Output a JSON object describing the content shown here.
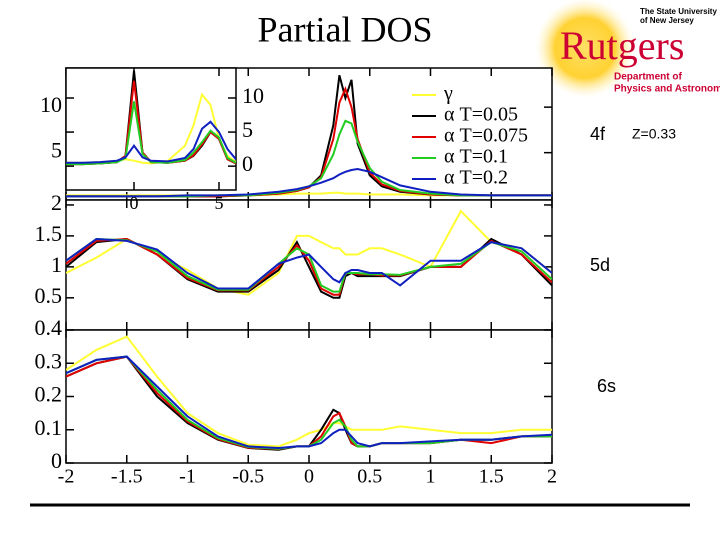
{
  "slide": {
    "title": "Partial DOS",
    "logo": {
      "name": "Rutgers",
      "university": [
        "The State University",
        "of New Jersey"
      ],
      "department": [
        "Department of",
        "Physics and Astronomy"
      ]
    }
  },
  "chart_data": [
    {
      "type": "line",
      "label": "4f",
      "note": "Z=0.33",
      "legend": "upper right",
      "x": [
        -2,
        -1.75,
        -1.5,
        -1.25,
        -1,
        -0.75,
        -0.5,
        -0.25,
        -0.1,
        0,
        0.1,
        0.2,
        0.25,
        0.3,
        0.35,
        0.4,
        0.5,
        0.6,
        0.75,
        1,
        1.25,
        1.5,
        1.75,
        2
      ],
      "xlim": [
        -2,
        2
      ],
      "xticks": [
        -2,
        -1.5,
        -1,
        -0.5,
        0,
        0.5,
        1,
        1.5,
        2
      ],
      "ylim": [
        -0.2,
        14.3
      ],
      "yticks": [
        5,
        10
      ],
      "series": [
        {
          "name": "γ",
          "color": "#ffff33",
          "values": [
            0.3,
            0.3,
            0.3,
            0.3,
            0.3,
            0.3,
            0.3,
            0.4,
            0.5,
            0.5,
            0.5,
            0.6,
            0.6,
            0.5,
            0.5,
            0.5,
            0.4,
            0.4,
            0.4,
            0.3,
            0.3,
            0.3,
            0.3,
            0.3
          ]
        },
        {
          "name": "α T=0.05",
          "color": "#000000",
          "values": [
            0.2,
            0.2,
            0.2,
            0.2,
            0.2,
            0.2,
            0.3,
            0.5,
            0.8,
            1.2,
            2.5,
            8,
            13.5,
            11,
            13,
            6,
            2.5,
            1.3,
            0.7,
            0.4,
            0.3,
            0.3,
            0.3,
            0.3
          ]
        },
        {
          "name": "α T=0.075",
          "color": "#e00000",
          "values": [
            0.2,
            0.2,
            0.2,
            0.2,
            0.2,
            0.2,
            0.3,
            0.5,
            0.8,
            1.2,
            2.3,
            6.5,
            10.5,
            12,
            10,
            6.5,
            2.8,
            1.5,
            0.8,
            0.4,
            0.3,
            0.3,
            0.3,
            0.3
          ]
        },
        {
          "name": "α T=0.1",
          "color": "#22cc22",
          "values": [
            0.2,
            0.2,
            0.2,
            0.2,
            0.2,
            0.3,
            0.3,
            0.6,
            0.9,
            1.3,
            2.2,
            4.8,
            7,
            8.5,
            8.2,
            6.2,
            3.3,
            1.8,
            0.9,
            0.5,
            0.3,
            0.3,
            0.3,
            0.3
          ]
        },
        {
          "name": "α T=0.2",
          "color": "#1020c0",
          "values": [
            0.2,
            0.2,
            0.2,
            0.2,
            0.3,
            0.3,
            0.4,
            0.7,
            1,
            1.3,
            1.7,
            2.2,
            2.6,
            2.9,
            3.1,
            3.2,
            2.9,
            2.3,
            1.4,
            0.7,
            0.4,
            0.3,
            0.3,
            0.3
          ]
        }
      ]
    },
    {
      "type": "line",
      "label": "5d",
      "x": [
        -2,
        -1.75,
        -1.5,
        -1.25,
        -1,
        -0.75,
        -0.5,
        -0.25,
        -0.1,
        0,
        0.1,
        0.2,
        0.25,
        0.3,
        0.35,
        0.4,
        0.5,
        0.6,
        0.75,
        1,
        1.25,
        1.5,
        1.75,
        2
      ],
      "xlim": [
        -2,
        2
      ],
      "xticks": [
        -2,
        -1.5,
        -1,
        -0.5,
        0,
        0.5,
        1,
        1.5,
        2
      ],
      "ylim": [
        -0.02,
        2.08
      ],
      "yticks": [
        0.5,
        1,
        1.5,
        2
      ],
      "series": [
        {
          "color": "#ffff33",
          "values": [
            0.9,
            1.15,
            1.45,
            1.2,
            0.95,
            0.65,
            0.55,
            0.9,
            1.5,
            1.5,
            1.4,
            1.3,
            1.3,
            1.2,
            1.2,
            1.2,
            1.3,
            1.3,
            1.2,
            1.0,
            1.9,
            1.4,
            1.3,
            0.9
          ]
        },
        {
          "color": "#000000",
          "values": [
            1.0,
            1.4,
            1.45,
            1.2,
            0.8,
            0.6,
            0.6,
            0.95,
            1.4,
            1.0,
            0.6,
            0.5,
            0.5,
            0.85,
            0.9,
            0.85,
            0.85,
            0.85,
            0.85,
            1.0,
            1.0,
            1.45,
            1.2,
            0.7
          ]
        },
        {
          "color": "#e00000",
          "values": [
            1.05,
            1.42,
            1.45,
            1.2,
            0.82,
            0.62,
            0.62,
            1.0,
            1.35,
            1.1,
            0.65,
            0.55,
            0.55,
            0.9,
            0.9,
            0.88,
            0.88,
            0.86,
            0.86,
            1.0,
            1.0,
            1.42,
            1.2,
            0.75
          ]
        },
        {
          "color": "#22cc22",
          "values": [
            1.1,
            1.45,
            1.43,
            1.25,
            0.85,
            0.63,
            0.63,
            1.05,
            1.3,
            1.2,
            0.7,
            0.6,
            0.6,
            0.9,
            0.9,
            0.9,
            0.88,
            0.88,
            0.87,
            1.0,
            1.05,
            1.4,
            1.25,
            0.8
          ]
        },
        {
          "color": "#1020c0",
          "values": [
            1.1,
            1.45,
            1.42,
            1.28,
            0.9,
            0.65,
            0.65,
            1.05,
            1.15,
            1.2,
            1.0,
            0.8,
            0.75,
            0.9,
            0.95,
            0.95,
            0.9,
            0.9,
            0.7,
            1.1,
            1.1,
            1.4,
            1.3,
            0.9
          ]
        }
      ]
    },
    {
      "type": "line",
      "label": "6s",
      "x": [
        -2,
        -1.75,
        -1.5,
        -1.25,
        -1,
        -0.75,
        -0.5,
        -0.25,
        -0.1,
        0,
        0.1,
        0.2,
        0.25,
        0.3,
        0.35,
        0.4,
        0.5,
        0.6,
        0.75,
        1,
        1.25,
        1.5,
        1.75,
        2
      ],
      "xlim": [
        -2,
        2
      ],
      "xticks": [
        -2,
        -1.5,
        -1,
        -0.5,
        0,
        0.5,
        1,
        1.5,
        2
      ],
      "ylim": [
        0,
        0.4
      ],
      "yticks": [
        0,
        0.1,
        0.2,
        0.3,
        0.4
      ],
      "series": [
        {
          "color": "#ffff33",
          "values": [
            0.28,
            0.34,
            0.38,
            0.26,
            0.15,
            0.09,
            0.055,
            0.05,
            0.07,
            0.09,
            0.1,
            0.12,
            0.12,
            0.11,
            0.1,
            0.1,
            0.1,
            0.1,
            0.11,
            0.1,
            0.09,
            0.09,
            0.1,
            0.1
          ]
        },
        {
          "color": "#000000",
          "values": [
            0.26,
            0.3,
            0.32,
            0.2,
            0.12,
            0.07,
            0.045,
            0.04,
            0.05,
            0.05,
            0.1,
            0.16,
            0.15,
            0.1,
            0.06,
            0.05,
            0.05,
            0.06,
            0.06,
            0.06,
            0.07,
            0.07,
            0.08,
            0.08
          ]
        },
        {
          "color": "#e00000",
          "values": [
            0.26,
            0.3,
            0.32,
            0.21,
            0.125,
            0.072,
            0.046,
            0.042,
            0.05,
            0.05,
            0.08,
            0.14,
            0.15,
            0.11,
            0.06,
            0.05,
            0.05,
            0.06,
            0.06,
            0.06,
            0.07,
            0.06,
            0.08,
            0.08
          ]
        },
        {
          "color": "#22cc22",
          "values": [
            0.27,
            0.31,
            0.32,
            0.22,
            0.13,
            0.075,
            0.048,
            0.043,
            0.05,
            0.05,
            0.07,
            0.12,
            0.13,
            0.11,
            0.07,
            0.05,
            0.05,
            0.06,
            0.06,
            0.06,
            0.07,
            0.07,
            0.08,
            0.08
          ]
        },
        {
          "color": "#1020c0",
          "values": [
            0.27,
            0.31,
            0.32,
            0.23,
            0.14,
            0.08,
            0.05,
            0.045,
            0.05,
            0.05,
            0.06,
            0.09,
            0.1,
            0.1,
            0.08,
            0.06,
            0.05,
            0.06,
            0.06,
            0.065,
            0.07,
            0.07,
            0.08,
            0.085
          ]
        }
      ]
    },
    {
      "type": "line",
      "x": [
        -4,
        -3,
        -2,
        -1,
        -0.5,
        0,
        0.5,
        1,
        2,
        3,
        3.5,
        4,
        4.5,
        5,
        5.5,
        6
      ],
      "xlim": [
        -4,
        6
      ],
      "xticks": [
        0,
        5
      ],
      "ylim": [
        -3.5,
        14.4
      ],
      "yticks": [
        0,
        5,
        10
      ],
      "series": [
        {
          "color": "#ffff33",
          "values": [
            0.5,
            0.5,
            0.6,
            0.8,
            1,
            0.8,
            0.5,
            0.4,
            0.8,
            3,
            6,
            10.5,
            9,
            4,
            1.5,
            0.6
          ]
        },
        {
          "color": "#000000",
          "values": [
            0.3,
            0.3,
            0.4,
            0.6,
            1.5,
            14,
            2,
            0.6,
            0.5,
            0.8,
            1.5,
            3,
            5,
            4,
            1,
            0.4
          ]
        },
        {
          "color": "#e00000",
          "values": [
            0.3,
            0.3,
            0.4,
            0.6,
            1.5,
            12.5,
            2,
            0.6,
            0.5,
            0.8,
            1.6,
            3.2,
            5,
            4,
            1,
            0.4
          ]
        },
        {
          "color": "#22cc22",
          "values": [
            0.3,
            0.3,
            0.4,
            0.6,
            1.2,
            9.5,
            1.8,
            0.6,
            0.5,
            0.9,
            2,
            3.5,
            5.2,
            4.2,
            1.2,
            0.5
          ]
        },
        {
          "color": "#1020c0",
          "values": [
            0.5,
            0.5,
            0.6,
            0.8,
            1.3,
            3,
            1.3,
            0.8,
            0.7,
            1.2,
            2.5,
            5.5,
            6.5,
            5,
            2.5,
            1
          ]
        }
      ]
    }
  ]
}
